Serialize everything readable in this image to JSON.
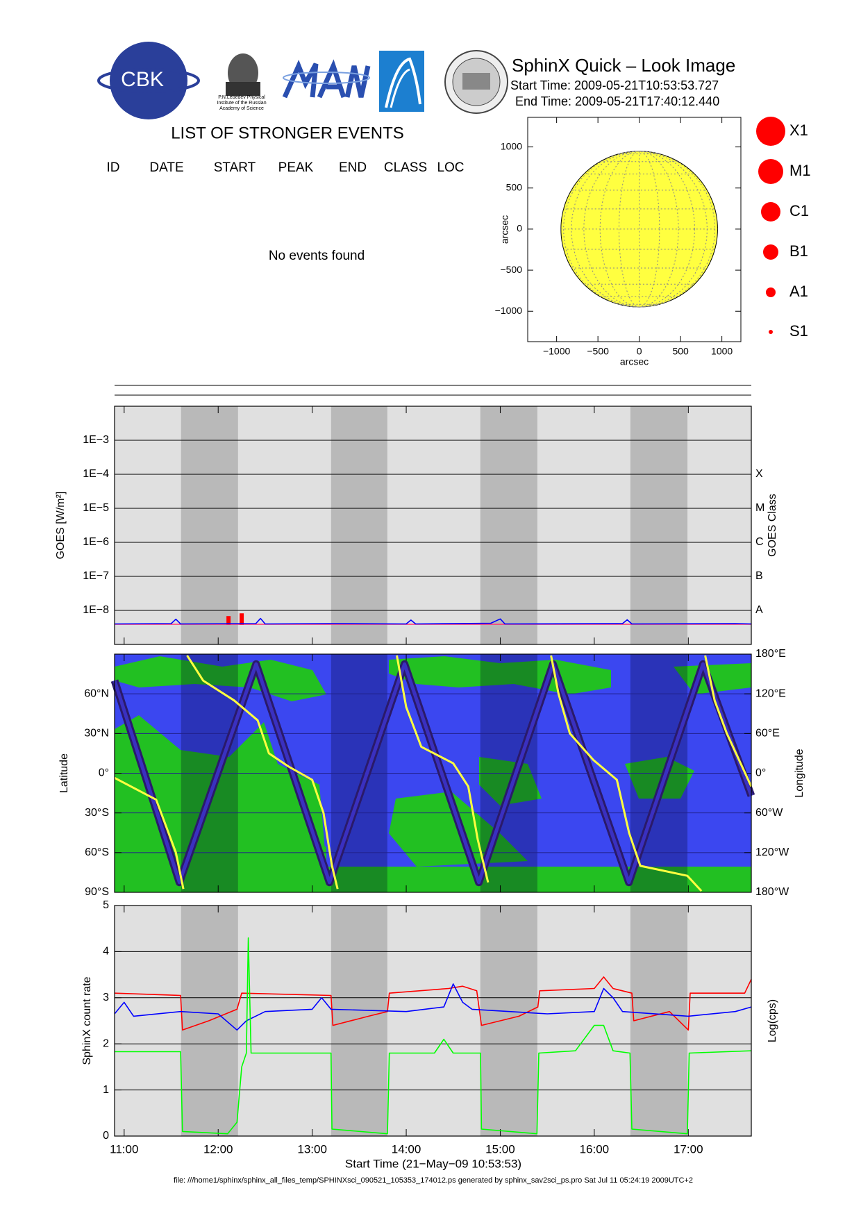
{
  "header": {
    "title": "SphinX Quick – Look Image",
    "start_time": "Start Time: 2009-05-21T10:53:53.727",
    "end_time": "End Time: 2009-05-21T17:40:12.440",
    "logo_text": "CBK",
    "lebedev_caption": [
      "P.N.Lebedev Physical",
      "Institute of the Russian",
      "Academy of Science"
    ]
  },
  "events_table": {
    "title": "LIST OF STRONGER EVENTS",
    "columns": [
      "ID",
      "DATE",
      "START",
      "PEAK",
      "END",
      "CLASS",
      "LOC"
    ],
    "message": "No events found"
  },
  "flare_legend": {
    "labels": [
      "X1",
      "M1",
      "C1",
      "B1",
      "A1",
      "S1"
    ],
    "color": "#ff0000"
  },
  "time_axis": {
    "xlim": [
      10.898,
      17.67
    ],
    "xticks": [
      {
        "value": 11,
        "label": "11:00"
      },
      {
        "value": 12,
        "label": "12:00"
      },
      {
        "value": 13,
        "label": "13:00"
      },
      {
        "value": 14,
        "label": "14:00"
      },
      {
        "value": 15,
        "label": "15:00"
      },
      {
        "value": 16,
        "label": "16:00"
      },
      {
        "value": 17,
        "label": "17:00"
      }
    ],
    "xlabel": "Start Time (21−May−09 10:53:53)"
  },
  "eclipse_intervals": [
    [
      11.605,
      12.211
    ],
    [
      13.201,
      13.799
    ],
    [
      14.788,
      15.395
    ],
    [
      16.384,
      16.991
    ]
  ],
  "chart_data": [
    {
      "type": "disk",
      "xlabel": "arcsec",
      "ylabel": "arcsec",
      "xlim": [
        -1350,
        1230
      ],
      "ylim": [
        -1370,
        1360
      ],
      "xticks": [
        {
          "value": -1000,
          "label": "−1000"
        },
        {
          "value": -500,
          "label": "−500"
        },
        0,
        500,
        1000
      ],
      "yticks": [
        {
          "value": -1000,
          "label": "−1000"
        },
        {
          "value": -500,
          "label": "−500"
        },
        0,
        500,
        1000
      ],
      "radius": 948,
      "color": "#ffff40"
    },
    {
      "type": "line",
      "ylabel": "GOES [W/m²]",
      "y2label": "GOES Class",
      "log_scale": true,
      "ylim": [
        1e-09,
        0.01
      ],
      "yticks": [
        {
          "value": 1e-08,
          "label": "1E−8"
        },
        {
          "value": 1e-07,
          "label": "1E−7"
        },
        {
          "value": 1e-06,
          "label": "1E−6"
        },
        {
          "value": 1e-05,
          "label": "1E−5"
        },
        {
          "value": 0.0001,
          "label": "1E−4"
        },
        {
          "value": 0.001,
          "label": "1E−3"
        }
      ],
      "y2lim": [
        1e-09,
        0.01
      ],
      "y2ticks": [
        {
          "value": 1e-08,
          "label": "A"
        },
        {
          "value": 1e-07,
          "label": "B"
        },
        {
          "value": 1e-06,
          "label": "C"
        },
        {
          "value": 1e-05,
          "label": "M"
        },
        {
          "value": 0.0001,
          "label": "X"
        }
      ],
      "grid": true,
      "series": [
        {
          "color": "#ff3070",
          "x": [
            10.898,
            17.67
          ],
          "values": [
            3.9e-09,
            3.9e-09
          ]
        },
        {
          "color": "#0000ff",
          "x": [
            10.898,
            11.5,
            11.55,
            11.6,
            12.4,
            12.45,
            12.5,
            13.2,
            14.0,
            14.05,
            14.1,
            14.9,
            15.0,
            15.05,
            16.3,
            16.35,
            16.4,
            17.5,
            17.67
          ],
          "values": [
            4e-09,
            4.1e-09,
            5.5e-09,
            4e-09,
            4.1e-09,
            5.8e-09,
            4e-09,
            4.1e-09,
            4e-09,
            5.2e-09,
            4e-09,
            4.2e-09,
            5.6e-09,
            4e-09,
            4.1e-09,
            5.3e-09,
            4e-09,
            4.1e-09,
            4e-09
          ]
        }
      ],
      "bars": {
        "color": "#ff0000",
        "x": [
          12.11,
          12.25
        ],
        "values": [
          6.8e-09,
          8.2e-09
        ]
      }
    },
    {
      "type": "line",
      "ylabel": "Latitude",
      "y2label": "Longitude",
      "ylim": [
        -90,
        90
      ],
      "yticks": [
        {
          "value": -90,
          "label": "90°S"
        },
        {
          "value": -60,
          "label": "60°S"
        },
        {
          "value": -30,
          "label": "30°S"
        },
        {
          "value": 0,
          "label": "0°"
        },
        {
          "value": 30,
          "label": "30°N"
        },
        {
          "value": 60,
          "label": "60°N"
        }
      ],
      "y2lim": [
        -180,
        180
      ],
      "y2ticks": [
        {
          "value": -180,
          "label": "180°W"
        },
        {
          "value": -120,
          "label": "120°W"
        },
        {
          "value": -60,
          "label": "60°W"
        },
        {
          "value": 0,
          "label": "0°"
        },
        {
          "value": 60,
          "label": "60°E"
        },
        {
          "value": 120,
          "label": "120°E"
        },
        {
          "value": 180,
          "label": "180°E"
        }
      ],
      "grid": true,
      "series": [
        {
          "color": "#2a1a6a",
          "x": [
            10.898,
            11.588,
            12.403,
            13.184,
            13.982,
            14.772,
            15.561,
            16.368,
            17.157,
            17.67
          ],
          "values": [
            70,
            -82.5,
            82.5,
            -82.5,
            82.5,
            -82.5,
            82.5,
            -82.5,
            82.5,
            -17
          ]
        },
        {
          "color": "#ffff40",
          "axis": "y2",
          "x": [
            10.898,
            11.34,
            11.55,
            11.63,
            null,
            11.67,
            11.84,
            12.17,
            12.42,
            12.54,
            12.75,
            13.0,
            13.12,
            13.21,
            13.27,
            null,
            13.9,
            14.0,
            14.16,
            14.5,
            14.66,
            14.76,
            14.87,
            null,
            15.54,
            15.62,
            15.74,
            15.99,
            16.24,
            16.37,
            16.49,
            16.99,
            17.14,
            null,
            17.18,
            17.28,
            17.41,
            17.67
          ],
          "values": [
            -7,
            -40,
            -120,
            -175,
            null,
            178,
            140,
            110,
            80,
            30,
            10,
            -10,
            -60,
            -140,
            -175,
            null,
            178,
            100,
            40,
            15,
            -20,
            -100,
            -165,
            null,
            178,
            120,
            60,
            20,
            -10,
            -90,
            -140,
            -155,
            -178,
            null,
            178,
            110,
            60,
            -20
          ]
        }
      ]
    },
    {
      "type": "line",
      "ylabel": "SphinX count rate",
      "y2label": "Log(cps)",
      "ylim": [
        0,
        5
      ],
      "yticks": [
        0,
        1,
        2,
        3,
        4,
        5
      ],
      "grid": true,
      "series": [
        {
          "color": "#ff0000",
          "x": [
            10.898,
            11.6,
            11.62,
            11.9,
            12.2,
            12.25,
            13.2,
            13.22,
            13.6,
            13.8,
            13.82,
            14.45,
            14.6,
            14.75,
            14.8,
            15.2,
            15.4,
            15.42,
            16.0,
            16.1,
            16.2,
            16.4,
            16.42,
            16.8,
            17.0,
            17.02,
            17.6,
            17.67
          ],
          "values": [
            3.1,
            3.05,
            2.3,
            2.5,
            2.75,
            3.1,
            3.05,
            2.4,
            2.6,
            2.7,
            3.1,
            3.2,
            3.25,
            3.15,
            2.4,
            2.6,
            2.8,
            3.15,
            3.2,
            3.45,
            3.2,
            3.1,
            2.5,
            2.7,
            2.3,
            3.1,
            3.1,
            3.4
          ]
        },
        {
          "color": "#0000ff",
          "x": [
            10.898,
            11.0,
            11.1,
            11.6,
            12.0,
            12.2,
            12.3,
            12.5,
            13.0,
            13.1,
            13.2,
            14.0,
            14.4,
            14.5,
            14.6,
            14.7,
            15.5,
            16.0,
            16.1,
            16.2,
            16.3,
            17.0,
            17.5,
            17.67
          ],
          "values": [
            2.65,
            2.9,
            2.6,
            2.7,
            2.65,
            2.3,
            2.5,
            2.7,
            2.75,
            3.0,
            2.75,
            2.7,
            2.8,
            3.3,
            2.9,
            2.75,
            2.65,
            2.7,
            3.2,
            3.0,
            2.7,
            2.6,
            2.7,
            2.8
          ]
        },
        {
          "color": "#00ff00",
          "x": [
            10.898,
            11.6,
            11.62,
            12.1,
            12.2,
            12.25,
            12.3,
            12.32,
            12.35,
            13.2,
            13.21,
            13.8,
            13.82,
            14.3,
            14.4,
            14.5,
            14.79,
            14.8,
            15.39,
            15.41,
            15.8,
            16.0,
            16.1,
            16.2,
            16.38,
            16.4,
            16.99,
            17.01,
            17.67
          ],
          "values": [
            1.83,
            1.83,
            0.1,
            0.05,
            0.3,
            1.5,
            1.8,
            4.3,
            1.8,
            1.8,
            0.15,
            0.05,
            1.8,
            1.8,
            2.1,
            1.8,
            1.8,
            0.15,
            0.05,
            1.8,
            1.85,
            2.4,
            2.4,
            1.85,
            1.8,
            0.15,
            0.05,
            1.8,
            1.85
          ]
        }
      ]
    }
  ],
  "footer": "file: ///home1/sphinx/sphinx_all_files_temp/SPHINXsci_090521_105353_174012.ps generated by sphinx_sav2sci_ps.pro Sat Jul 11 05:24:19 2009UTC+2"
}
